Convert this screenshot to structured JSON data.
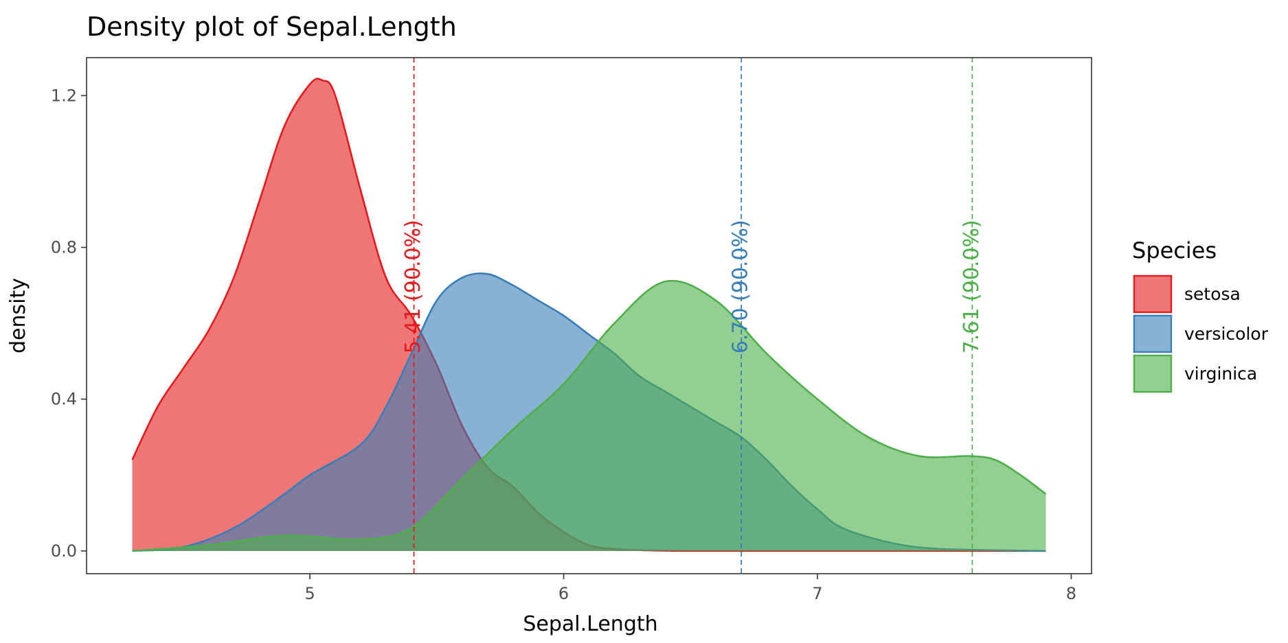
{
  "chart_data": {
    "type": "area",
    "title": "Density plot of Sepal.Length",
    "xlabel": "Sepal.Length",
    "ylabel": "density",
    "xlim": [
      4.12,
      8.08
    ],
    "ylim": [
      -0.06,
      1.3
    ],
    "x_ticks": [
      5,
      6,
      7,
      8
    ],
    "x_tick_labels": [
      "5",
      "6",
      "7",
      "8"
    ],
    "y_ticks": [
      0.0,
      0.4,
      0.8,
      1.2
    ],
    "y_tick_labels": [
      "0.0",
      "0.4",
      "0.8",
      "1.2"
    ],
    "grid": false,
    "legend": {
      "title": "Species",
      "position": "right"
    },
    "series": [
      {
        "name": "setosa",
        "line_color": "#E41A1C",
        "fill_color": "#E41A1C",
        "x": [
          4.3,
          4.4,
          4.5,
          4.6,
          4.7,
          4.8,
          4.9,
          5.0,
          5.05,
          5.1,
          5.2,
          5.3,
          5.4,
          5.5,
          5.6,
          5.7,
          5.8,
          5.9,
          6.0,
          6.1,
          6.2,
          6.3,
          6.5,
          7.0,
          7.5,
          7.9
        ],
        "y": [
          0.24,
          0.38,
          0.48,
          0.58,
          0.72,
          0.92,
          1.12,
          1.23,
          1.24,
          1.2,
          0.95,
          0.72,
          0.62,
          0.49,
          0.33,
          0.22,
          0.17,
          0.1,
          0.05,
          0.015,
          0.005,
          0.002,
          0.0,
          0.0,
          0.0,
          0.0
        ]
      },
      {
        "name": "versicolor",
        "line_color": "#377EB8",
        "fill_color": "#377EB8",
        "x": [
          4.3,
          4.5,
          4.7,
          4.9,
          5.0,
          5.2,
          5.3,
          5.4,
          5.5,
          5.6,
          5.7,
          5.8,
          5.9,
          6.0,
          6.1,
          6.2,
          6.3,
          6.4,
          6.5,
          6.6,
          6.7,
          6.8,
          6.9,
          7.0,
          7.1,
          7.3,
          7.5,
          7.9
        ],
        "y": [
          0.0,
          0.01,
          0.06,
          0.15,
          0.2,
          0.28,
          0.38,
          0.52,
          0.66,
          0.72,
          0.73,
          0.7,
          0.66,
          0.62,
          0.57,
          0.52,
          0.46,
          0.42,
          0.38,
          0.34,
          0.3,
          0.24,
          0.17,
          0.11,
          0.06,
          0.02,
          0.005,
          0.0
        ]
      },
      {
        "name": "virginica",
        "line_color": "#4DAF4A",
        "fill_color": "#4DAF4A",
        "x": [
          4.3,
          4.6,
          4.9,
          5.2,
          5.4,
          5.6,
          5.8,
          6.0,
          6.2,
          6.4,
          6.6,
          6.8,
          7.0,
          7.2,
          7.4,
          7.6,
          7.7,
          7.8,
          7.9
        ],
        "y": [
          0.0,
          0.015,
          0.04,
          0.03,
          0.06,
          0.19,
          0.32,
          0.44,
          0.6,
          0.71,
          0.66,
          0.52,
          0.4,
          0.3,
          0.25,
          0.25,
          0.24,
          0.2,
          0.15
        ]
      }
    ],
    "annotations": [
      {
        "label": "5.41 (90.0%)",
        "x": 5.41,
        "color": "#E41A1C",
        "series": "setosa"
      },
      {
        "label": "6.70 (90.0%)",
        "x": 6.7,
        "color": "#377EB8",
        "series": "versicolor"
      },
      {
        "label": "7.61 (90.0%)",
        "x": 7.61,
        "color": "#4DAF4A",
        "series": "virginica"
      }
    ]
  }
}
